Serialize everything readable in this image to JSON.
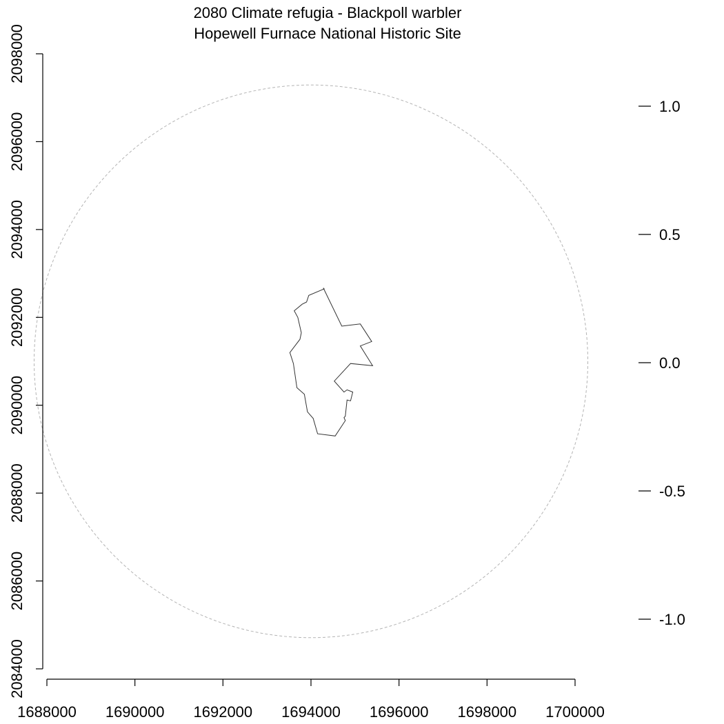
{
  "title": {
    "line1": "2080 Climate refugia - Blackpoll warbler",
    "line2": "Hopewell Furnace National Historic Site"
  },
  "colors": {
    "buffer_outline": "#b3b3b3",
    "park_outline": "#333333",
    "axes": "#000000"
  },
  "map": {
    "x_axis": {
      "range": [
        1688000,
        1700000
      ],
      "ticks": [
        "1688000",
        "1690000",
        "1692000",
        "1694000",
        "1696000",
        "1698000",
        "1700000"
      ]
    },
    "y_axis": {
      "range": [
        2084000,
        2098000
      ],
      "ticks": [
        "2084000",
        "2086000",
        "2088000",
        "2090000",
        "2092000",
        "2094000",
        "2096000",
        "2098000"
      ]
    },
    "legend_scale": {
      "range": [
        -1.0,
        1.0
      ],
      "ticks": [
        "1.0",
        "0.5",
        "0.0",
        "-0.5",
        "-1.0"
      ],
      "values": [
        1.0,
        0.5,
        0.0,
        -0.5,
        -1.0
      ]
    },
    "buffer_circle": {
      "style": "dashed",
      "center": [
        1694000,
        2091000
      ],
      "radius_m": 6290
    },
    "park_boundary": {
      "style": "solid",
      "coords": [
        [
          1693620,
          2092150
        ],
        [
          1693800,
          2092300
        ],
        [
          1693900,
          2092350
        ],
        [
          1693950,
          2092500
        ],
        [
          1694300,
          2092650
        ],
        [
          1694280,
          2092670
        ],
        [
          1694700,
          2091800
        ],
        [
          1695120,
          2091850
        ],
        [
          1695380,
          2091450
        ],
        [
          1695120,
          2091350
        ],
        [
          1695400,
          2090900
        ],
        [
          1694900,
          2090950
        ],
        [
          1694530,
          2090550
        ],
        [
          1694750,
          2090300
        ],
        [
          1694820,
          2090350
        ],
        [
          1694950,
          2090300
        ],
        [
          1694900,
          2090100
        ],
        [
          1694820,
          2090120
        ],
        [
          1694780,
          2089750
        ],
        [
          1694750,
          2089720
        ],
        [
          1694780,
          2089650
        ],
        [
          1694550,
          2089300
        ],
        [
          1694150,
          2089350
        ],
        [
          1694050,
          2089700
        ],
        [
          1693920,
          2089850
        ],
        [
          1693850,
          2090250
        ],
        [
          1693680,
          2090400
        ],
        [
          1693600,
          2090950
        ],
        [
          1693520,
          2091200
        ],
        [
          1693750,
          2091500
        ],
        [
          1693780,
          2091650
        ],
        [
          1693700,
          2092000
        ],
        [
          1693620,
          2092150
        ]
      ]
    }
  }
}
